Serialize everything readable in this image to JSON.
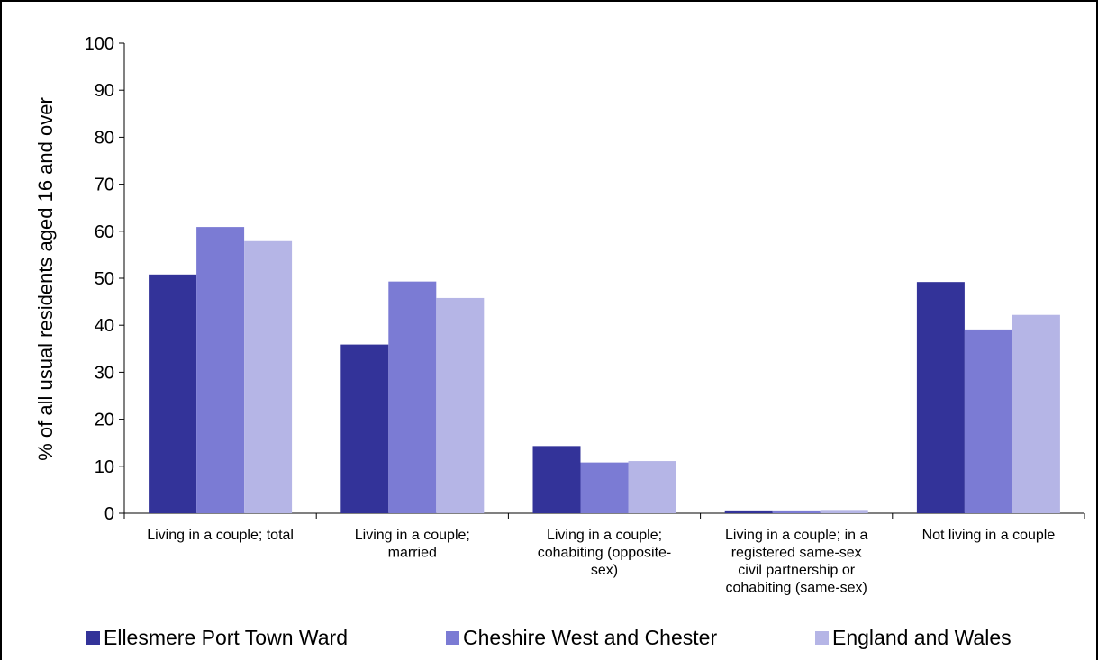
{
  "chart_data": {
    "type": "bar",
    "title": "",
    "xlabel": "",
    "ylabel": "% of all usual residents aged 16 and over",
    "ylim": [
      0,
      100
    ],
    "yticks": [
      "0",
      "10",
      "20",
      "30",
      "40",
      "50",
      "60",
      "70",
      "80",
      "90",
      "100"
    ],
    "grid": false,
    "legend_position": "bottom",
    "categories": [
      [
        "Living in a couple; total"
      ],
      [
        "Living in a couple;",
        "married"
      ],
      [
        "Living in a couple;",
        "cohabiting (opposite-",
        "sex)"
      ],
      [
        "Living in a couple; in a",
        "registered same-sex",
        "civil partnership or",
        "cohabiting (same-sex)"
      ],
      [
        "Not living in a couple"
      ]
    ],
    "series": [
      {
        "name": "Ellesmere Port Town Ward",
        "color": "#333399",
        "values": [
          50.8,
          35.9,
          14.3,
          0.6,
          49.2
        ]
      },
      {
        "name": "Cheshire West and Chester",
        "color": "#7b7bd4",
        "values": [
          60.9,
          49.3,
          10.8,
          0.6,
          39.1
        ]
      },
      {
        "name": "England and Wales",
        "color": "#b5b5e6",
        "values": [
          57.9,
          45.8,
          11.1,
          0.7,
          42.2
        ]
      }
    ]
  }
}
